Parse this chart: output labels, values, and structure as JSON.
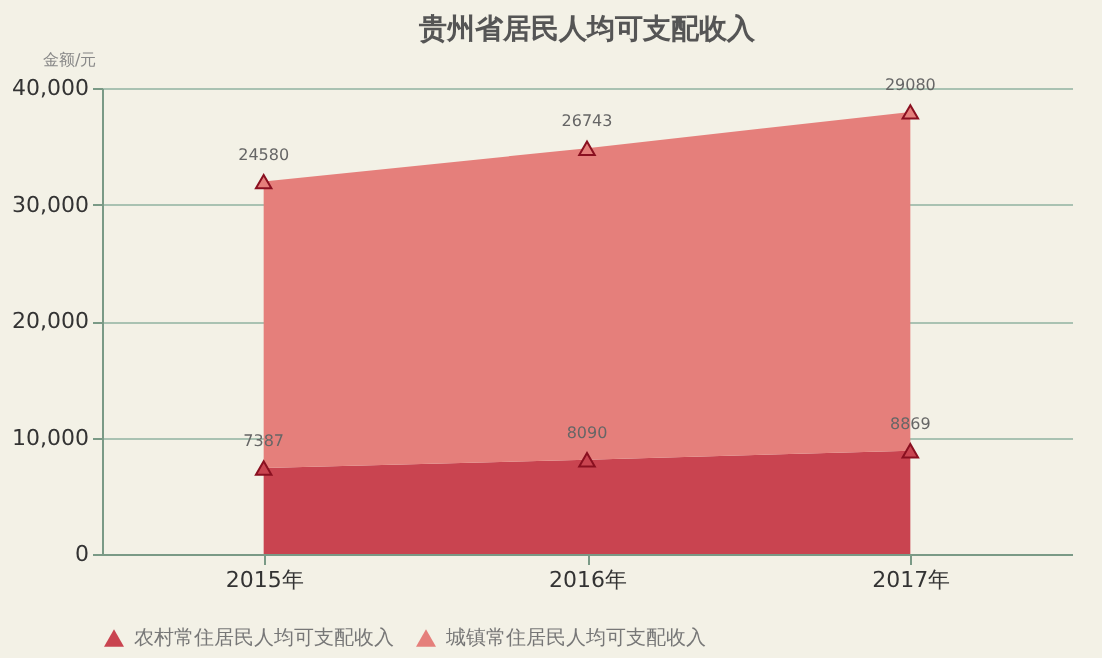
{
  "chart_data": {
    "type": "area",
    "title": "贵州省居民人均可支配收入",
    "ylabel": "金额/元",
    "categories": [
      "2015年",
      "2016年",
      "2017年"
    ],
    "series": [
      {
        "name": "农村常住居民人均可支配收入",
        "color": "#c94450",
        "values": [
          7387,
          8090,
          8869
        ]
      },
      {
        "name": "城镇常住居民人均可支配收入",
        "color": "#e57f7b",
        "values": [
          24580,
          26743,
          29080
        ]
      }
    ],
    "stacked": true,
    "data_labels": true,
    "marker": "triangle",
    "grid": "y",
    "legend": "bottom",
    "ylim": [
      0,
      40000
    ],
    "yticks": [
      {
        "value": 0,
        "label": "0"
      },
      {
        "value": 10000,
        "label": "10,000"
      },
      {
        "value": 20000,
        "label": "20,000"
      },
      {
        "value": 30000,
        "label": "30,000"
      },
      {
        "value": 40000,
        "label": "40,000"
      }
    ]
  }
}
